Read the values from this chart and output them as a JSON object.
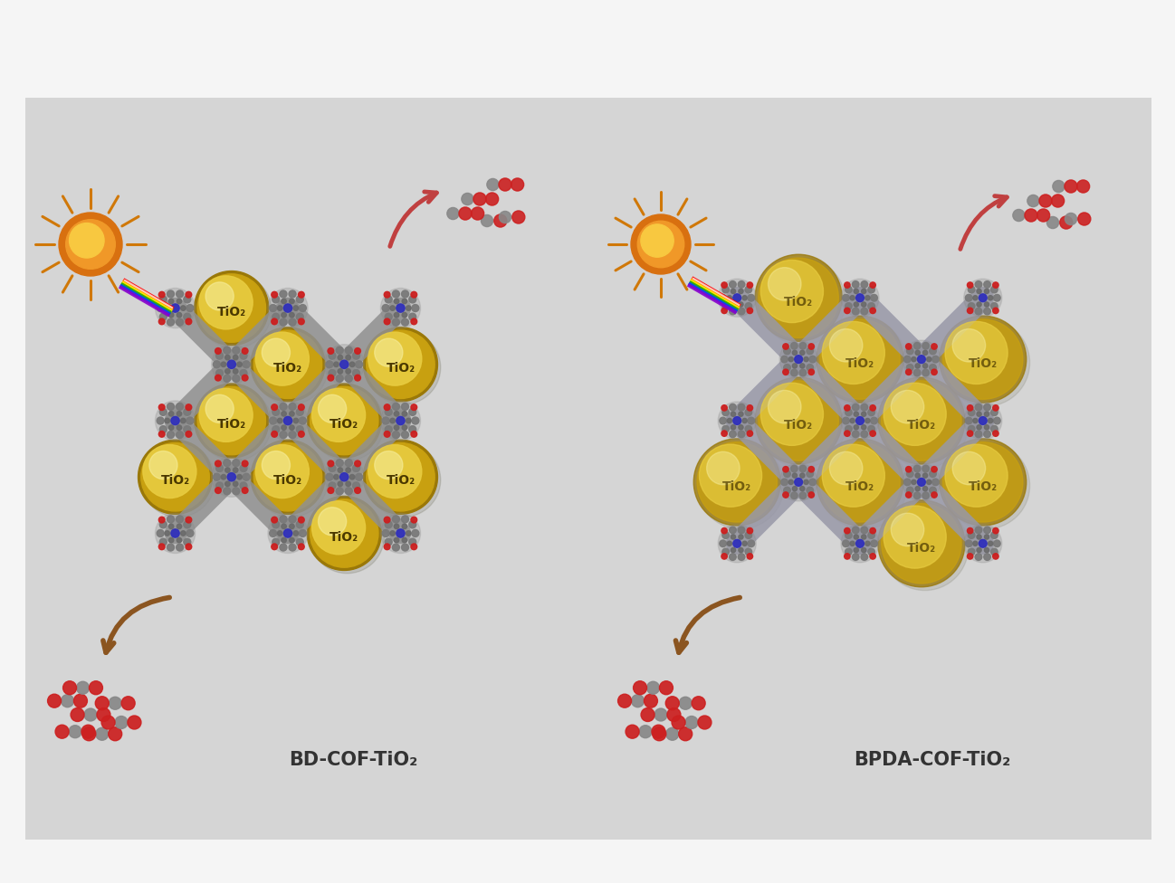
{
  "bg_color": "#d5d5d5",
  "white_bg": "#f5f5f5",
  "panel_bg": "#d5d5d5",
  "tio2_text_color": "#4a3800",
  "label1": "BD-COF-TiO₂",
  "label2": "BPDA-COF-TiO₂",
  "tio2_label": "TiO₂",
  "sun_color": "#f0a020",
  "arrow_color_red": "#c84444",
  "arrow_color_brown": "#8b5520",
  "label_fontsize": 15,
  "tio2_fontsize": 10
}
